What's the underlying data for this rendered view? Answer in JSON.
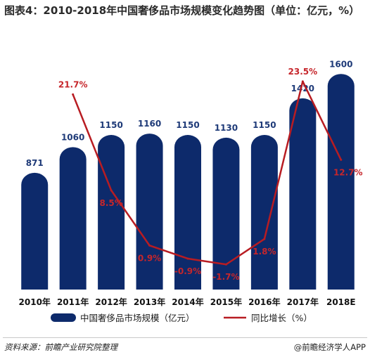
{
  "title": "图表4：2010-2018年中国奢侈品市场规模变化趋势图（单位：亿元，%）",
  "chart_data": {
    "type": "bar",
    "categories": [
      "2010年",
      "2011年",
      "2012年",
      "2013年",
      "2014年",
      "2015年",
      "2016年",
      "2017年",
      "2018E"
    ],
    "series": [
      {
        "name": "中国奢侈品市场规模（亿元）",
        "type": "bar",
        "values": [
          871,
          1060,
          1150,
          1160,
          1150,
          1130,
          1150,
          1420,
          1600
        ],
        "labels": [
          "871",
          "1060",
          "1150",
          "1160",
          "1150",
          "1130",
          "1150",
          "1420",
          "1600"
        ]
      },
      {
        "name": "同比增长（%）",
        "type": "line",
        "values": [
          null,
          21.7,
          8.5,
          0.9,
          -0.9,
          -1.7,
          1.8,
          23.5,
          12.7
        ],
        "labels": [
          "",
          "21.7%",
          "8.5%",
          "0.9%",
          "-0.9%",
          "-1.7%",
          "1.8%",
          "23.5%",
          "12.7%"
        ]
      }
    ],
    "bar_ylim": [
      0,
      1700
    ],
    "line_ylim": [
      -4,
      26
    ],
    "legend_position": "bottom",
    "grid": false
  },
  "colors": {
    "bar": "#0d2a6b",
    "line": "#b81c22"
  },
  "footer": {
    "source": "资料来源：前瞻产业研究院整理",
    "credit": "@前瞻经济学人APP"
  }
}
